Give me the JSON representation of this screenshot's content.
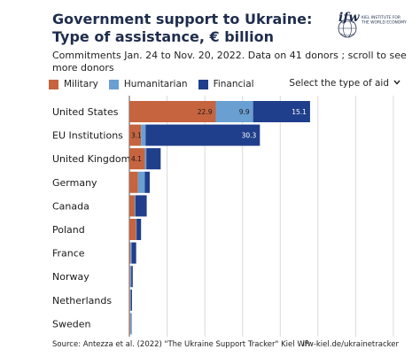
{
  "header": {
    "title": "Government support to Ukraine: Type of assistance, € billion",
    "subtitle": "Commitments Jan. 24 to Nov. 20, 2022. Data on 41 donors ; scroll to see more donors"
  },
  "logo": {
    "wordmark": "ifw",
    "line1": "KIEL INSTITUTE FOR",
    "line2": "THE WORLD ECONOMY"
  },
  "controls": {
    "select_label": "Select the type of aid",
    "select_icon": "chevron-down-icon"
  },
  "colors": {
    "military": "#c5643f",
    "humanitarian": "#6a9fd2",
    "financial": "#1f3f8c",
    "label_dark": "#1a1a1a",
    "label_light": "#ffffff"
  },
  "chart_data": {
    "type": "bar",
    "orientation": "horizontal",
    "stacked": true,
    "categories": [
      "United States",
      "EU Institutions",
      "United Kingdom",
      "Germany",
      "Canada",
      "Poland",
      "France",
      "Norway",
      "Netherlands",
      "Sweden"
    ],
    "series": [
      {
        "name": "Military",
        "values": [
          22.9,
          3.1,
          4.1,
          2.3,
          1.4,
          1.8,
          0.3,
          0.2,
          0.2,
          0.2
        ]
      },
      {
        "name": "Humanitarian",
        "values": [
          9.9,
          1.2,
          0.4,
          1.8,
          0.2,
          0.1,
          0.3,
          0.3,
          0.2,
          0.3
        ]
      },
      {
        "name": "Financial",
        "values": [
          15.1,
          30.3,
          3.8,
          1.3,
          3.0,
          1.2,
          1.2,
          0.4,
          0.3,
          0.1
        ]
      }
    ],
    "data_labels": [
      [
        "22.9",
        "9.9",
        "15.1"
      ],
      [
        "3.1",
        "",
        "30.3"
      ],
      [
        "4.1",
        "",
        ""
      ],
      [
        "",
        "",
        ""
      ],
      [
        "",
        "",
        ""
      ],
      [
        "",
        "",
        ""
      ],
      [
        "",
        "",
        ""
      ],
      [
        "",
        "",
        ""
      ],
      [
        "",
        "",
        ""
      ],
      [
        "",
        "",
        ""
      ]
    ],
    "xlim": [
      0,
      70
    ],
    "grid": true,
    "legend": "top-left"
  },
  "footer": {
    "source": "Source: Antezza et al. (2022) \"The Ukraine Support Tracker\" Kiel WP",
    "link": "ifw-kiel.de/ukrainetracker"
  }
}
